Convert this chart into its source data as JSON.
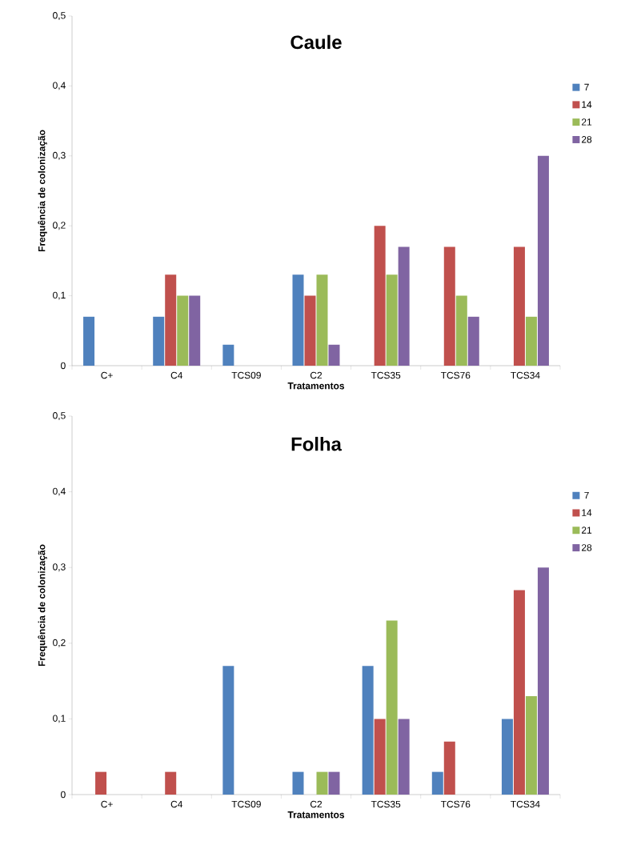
{
  "chart_data": [
    {
      "type": "bar",
      "title": "Caule",
      "xlabel": "Tratamentos",
      "ylabel": "Frequência de colonização",
      "categories": [
        "C+",
        "C4",
        "TCS09",
        "C2",
        "TCS35",
        "TCS76",
        "TCS34"
      ],
      "series": [
        {
          "name": "7",
          "color": "#4f81bd",
          "values": [
            0.07,
            0.07,
            0.03,
            0.13,
            0,
            0,
            0
          ]
        },
        {
          "name": "14",
          "color": "#c0504d",
          "values": [
            0,
            0.13,
            0,
            0.1,
            0.2,
            0.17,
            0.17
          ]
        },
        {
          "name": "21",
          "color": "#9bbb59",
          "values": [
            0,
            0.1,
            0,
            0.13,
            0.13,
            0.1,
            0.07
          ]
        },
        {
          "name": "28",
          "color": "#8064a2",
          "values": [
            0,
            0.1,
            0,
            0.03,
            0.17,
            0.07,
            0.3
          ]
        }
      ],
      "ylim": [
        0,
        0.5
      ],
      "yticks": [
        0,
        {
          "value": 0.1,
          "label": "0,1"
        },
        {
          "value": 0.2,
          "label": "0,2"
        },
        {
          "value": 0.3,
          "label": "0,3"
        },
        {
          "value": 0.4,
          "label": "0,4"
        },
        {
          "value": 0.5,
          "label": "0,5"
        }
      ],
      "legend": "right"
    },
    {
      "type": "bar",
      "title": "Folha",
      "xlabel": "Tratamentos",
      "ylabel": "Frequência de colonização",
      "categories": [
        "C+",
        "C4",
        "TCS09",
        "C2",
        "TCS35",
        "TCS76",
        "TCS34"
      ],
      "series": [
        {
          "name": "7",
          "color": "#4f81bd",
          "values": [
            0,
            0,
            0.17,
            0.03,
            0.17,
            0.03,
            0.1
          ]
        },
        {
          "name": "14",
          "color": "#c0504d",
          "values": [
            0.03,
            0.03,
            0,
            0,
            0.1,
            0.07,
            0.27
          ]
        },
        {
          "name": "21",
          "color": "#9bbb59",
          "values": [
            0,
            0,
            0,
            0.03,
            0.23,
            0,
            0.13
          ]
        },
        {
          "name": "28",
          "color": "#8064a2",
          "values": [
            0,
            0,
            0,
            0.03,
            0.1,
            0,
            0.3
          ]
        }
      ],
      "ylim": [
        0,
        0.5
      ],
      "yticks": [
        0,
        {
          "value": 0.1,
          "label": "0,1"
        },
        {
          "value": 0.2,
          "label": "0,2"
        },
        {
          "value": 0.3,
          "label": "0,3"
        },
        {
          "value": 0.4,
          "label": "0,4"
        },
        {
          "value": 0.5,
          "label": "0,5"
        }
      ],
      "legend": "right"
    }
  ]
}
